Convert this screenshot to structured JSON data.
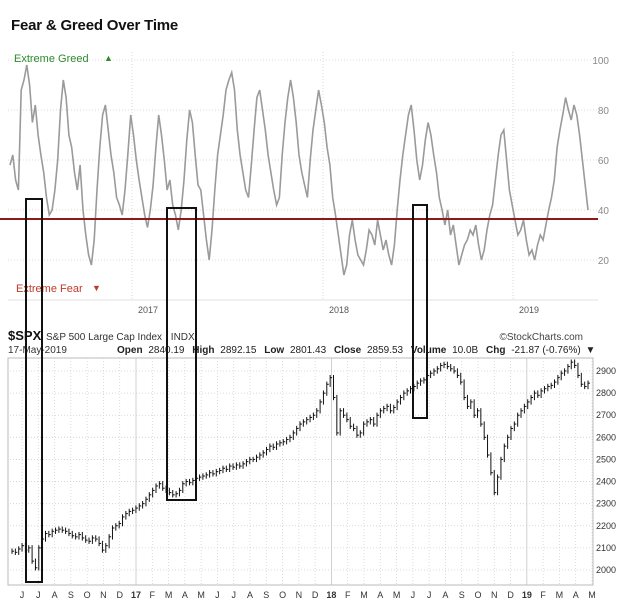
{
  "title": "Fear & Greed Over Time",
  "colors": {
    "fg_line": "#9a9a9a",
    "threshold_line": "#8b1a1a",
    "greed": "#2e8b2e",
    "fear": "#c0392b",
    "grid": "#cfcfcf",
    "price": "#111111",
    "box": "#111111"
  },
  "chart_data": [
    {
      "type": "line",
      "title": "Fear & Greed Over Time",
      "top_label": "Extreme Greed",
      "top_label_marker": "▲",
      "bottom_label": "Extreme Fear",
      "bottom_label_marker": "▼",
      "ylim": [
        0,
        100
      ],
      "yticks": [
        20,
        40,
        60,
        80,
        100
      ],
      "year_labels": [
        "2017",
        "2018",
        "2019"
      ],
      "threshold": 40,
      "grid": true,
      "series": [
        {
          "values": [
            58,
            62,
            52,
            48,
            88,
            92,
            98,
            90,
            75,
            82,
            70,
            62,
            55,
            45,
            38,
            40,
            48,
            60,
            80,
            92,
            85,
            70,
            65,
            55,
            48,
            58,
            40,
            30,
            22,
            18,
            28,
            48,
            65,
            78,
            82,
            72,
            62,
            55,
            45,
            42,
            38,
            48,
            62,
            78,
            70,
            60,
            52,
            45,
            38,
            33,
            40,
            50,
            65,
            78,
            70,
            60,
            48,
            52,
            42,
            38,
            32,
            40,
            52,
            68,
            80,
            75,
            62,
            50,
            48,
            38,
            28,
            20,
            32,
            48,
            62,
            70,
            78,
            88,
            92,
            95,
            88,
            72,
            62,
            55,
            48,
            45,
            58,
            72,
            85,
            88,
            80,
            72,
            62,
            55,
            48,
            42,
            45,
            62,
            75,
            85,
            92,
            85,
            75,
            62,
            55,
            50,
            45,
            60,
            72,
            80,
            88,
            82,
            75,
            65,
            58,
            45,
            38,
            30,
            22,
            14,
            18,
            30,
            36,
            28,
            22,
            20,
            18,
            24,
            32,
            30,
            26,
            36,
            30,
            24,
            28,
            22,
            18,
            26,
            40,
            52,
            62,
            70,
            78,
            82,
            72,
            60,
            52,
            58,
            68,
            75,
            70,
            62,
            55,
            45,
            40,
            34,
            40,
            30,
            34,
            26,
            18,
            22,
            26,
            28,
            32,
            30,
            34,
            26,
            20,
            24,
            32,
            38,
            42,
            52,
            62,
            70,
            72,
            60,
            48,
            42,
            36,
            30,
            32,
            36,
            28,
            22,
            24,
            20,
            26,
            30,
            28,
            34,
            40,
            45,
            52,
            65,
            72,
            78,
            85,
            80,
            76,
            82,
            78,
            70,
            60,
            50,
            40
          ]
        }
      ]
    },
    {
      "type": "line",
      "symbol": "$SPX",
      "name": "S&P 500 Large Cap Index",
      "exchange": "INDX",
      "date": "17-May-2019",
      "open_label": "Open",
      "open": "2840.19",
      "high_label": "High",
      "high": "2892.15",
      "low_label": "Low",
      "low": "2801.43",
      "close_label": "Close",
      "close": "2859.53",
      "volume_label": "Volume",
      "volume": "10.0B",
      "chg_label": "Chg",
      "chg": "-21.87 (-0.76%)",
      "chg_marker": "▼",
      "credit": "©StockCharts.com",
      "ylim": [
        1960,
        2960
      ],
      "yticks": [
        2000,
        2100,
        2200,
        2300,
        2400,
        2500,
        2600,
        2700,
        2800,
        2900
      ],
      "month_labels": [
        "J",
        "J",
        "A",
        "S",
        "O",
        "N",
        "D",
        "17",
        "F",
        "M",
        "A",
        "M",
        "J",
        "J",
        "A",
        "S",
        "O",
        "N",
        "D",
        "18",
        "F",
        "M",
        "A",
        "M",
        "J",
        "J",
        "A",
        "S",
        "O",
        "N",
        "D",
        "19",
        "F",
        "M",
        "A",
        "M"
      ],
      "grid": true,
      "values": [
        2085,
        2080,
        2095,
        2110,
        2090,
        2100,
        2040,
        2010,
        2100,
        2140,
        2165,
        2160,
        2175,
        2180,
        2185,
        2180,
        2175,
        2165,
        2155,
        2150,
        2160,
        2145,
        2135,
        2130,
        2145,
        2140,
        2120,
        2090,
        2110,
        2150,
        2190,
        2200,
        2210,
        2240,
        2255,
        2265,
        2270,
        2280,
        2290,
        2300,
        2320,
        2340,
        2360,
        2380,
        2390,
        2370,
        2360,
        2350,
        2340,
        2345,
        2360,
        2390,
        2400,
        2395,
        2405,
        2415,
        2420,
        2425,
        2430,
        2440,
        2435,
        2445,
        2450,
        2460,
        2455,
        2470,
        2465,
        2475,
        2470,
        2480,
        2490,
        2500,
        2500,
        2510,
        2520,
        2530,
        2545,
        2560,
        2555,
        2570,
        2575,
        2580,
        2590,
        2600,
        2620,
        2640,
        2660,
        2670,
        2680,
        2690,
        2700,
        2720,
        2760,
        2800,
        2840,
        2870,
        2780,
        2620,
        2720,
        2700,
        2680,
        2650,
        2640,
        2610,
        2620,
        2660,
        2670,
        2680,
        2660,
        2700,
        2720,
        2730,
        2740,
        2720,
        2735,
        2760,
        2780,
        2800,
        2810,
        2820,
        2830,
        2845,
        2855,
        2860,
        2880,
        2890,
        2900,
        2910,
        2925,
        2930,
        2920,
        2910,
        2900,
        2880,
        2850,
        2780,
        2740,
        2760,
        2700,
        2720,
        2660,
        2600,
        2520,
        2440,
        2350,
        2420,
        2500,
        2560,
        2600,
        2640,
        2660,
        2700,
        2720,
        2740,
        2760,
        2780,
        2800,
        2790,
        2810,
        2820,
        2830,
        2835,
        2850,
        2870,
        2890,
        2900,
        2920,
        2940,
        2925,
        2880,
        2840,
        2830,
        2845
      ]
    }
  ],
  "annotations": {
    "boxes_label": ""
  }
}
